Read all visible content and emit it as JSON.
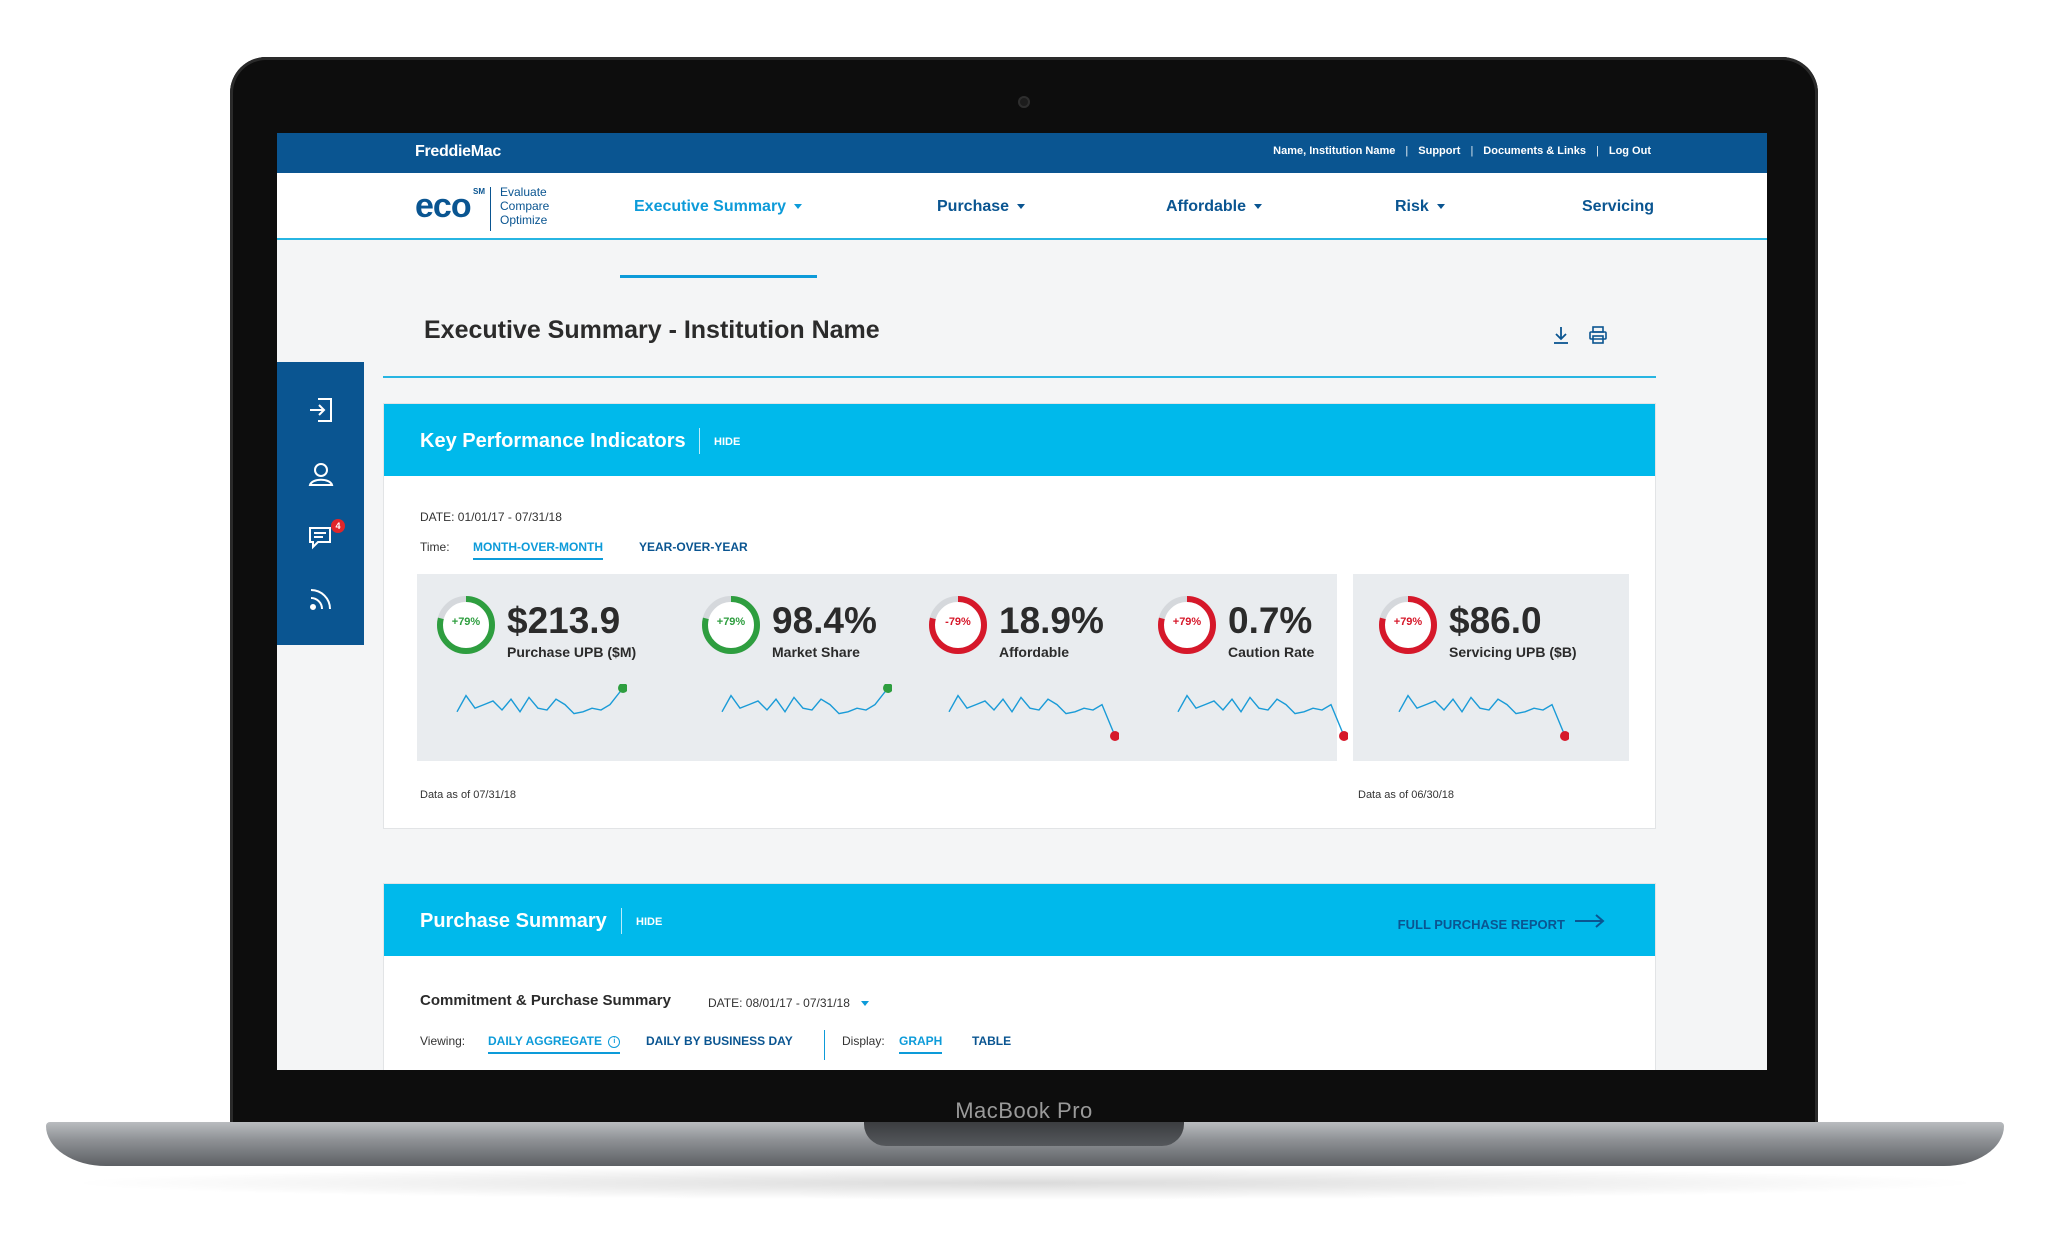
{
  "device": {
    "brand_label": "MacBook Pro"
  },
  "topbar": {
    "logo": "FreddieMac",
    "links": [
      "Name, Institution Name",
      "Support",
      "Documents & Links",
      "Log Out"
    ]
  },
  "brand": {
    "eco": "eco",
    "sm": "SM",
    "tagline": [
      "Evaluate",
      "Compare",
      "Optimize"
    ]
  },
  "nav": {
    "items": [
      {
        "label": "Executive Summary",
        "has_caret": true,
        "active": true
      },
      {
        "label": "Purchase",
        "has_caret": true
      },
      {
        "label": "Affordable",
        "has_caret": true
      },
      {
        "label": "Risk",
        "has_caret": true
      },
      {
        "label": "Servicing",
        "has_caret": false
      }
    ]
  },
  "sidebar": {
    "icons": [
      "login-icon",
      "user-icon",
      "messages-icon",
      "feed-icon"
    ],
    "message_badge": "4"
  },
  "page": {
    "title": "Executive Summary - Institution Name",
    "actions": [
      "download-icon",
      "print-icon"
    ]
  },
  "kpi": {
    "title": "Key Performance Indicators",
    "hide": "HIDE",
    "date_label": "DATE:",
    "date_value": "01/01/17 - 07/31/18",
    "time_label": "Time:",
    "time_tabs": [
      "MONTH-OVER-MONTH",
      "YEAR-OVER-YEAR"
    ],
    "cards": [
      {
        "change": "+79%",
        "value": "$213.9",
        "label": "Purchase UPB ($M)",
        "status": "up",
        "ring_fraction": 0.79
      },
      {
        "change": "+79%",
        "value": "98.4%",
        "label": "Market Share",
        "status": "up",
        "ring_fraction": 0.79
      },
      {
        "change": "-79%",
        "value": "18.9%",
        "label": "Affordable",
        "status": "down",
        "ring_fraction": 0.79
      },
      {
        "change": "+79%",
        "value": "0.7%",
        "label": "Caution Rate",
        "status": "down",
        "ring_fraction": 0.79
      },
      {
        "change": "+79%",
        "value": "$86.0",
        "label": "Servicing UPB ($B)",
        "status": "down",
        "ring_fraction": 0.79
      }
    ],
    "data_as_of_left": "Data as of 07/31/18",
    "data_as_of_right": "Data as of 06/30/18"
  },
  "purchase": {
    "title": "Purchase Summary",
    "hide": "HIDE",
    "full_report": "FULL PURCHASE REPORT",
    "subtitle": "Commitment & Purchase Summary",
    "date_label": "DATE:",
    "date_value": "08/01/17 - 07/31/18",
    "viewing_label": "Viewing:",
    "viewing_options": [
      "DAILY AGGREGATE",
      "DAILY BY BUSINESS DAY"
    ],
    "display_label": "Display:",
    "display_options": [
      "GRAPH",
      "TABLE"
    ]
  },
  "colors": {
    "brand_blue": "#0a5591",
    "accent_cyan": "#00b9eb",
    "up_green": "#2e9e3f",
    "down_red": "#d6182a"
  }
}
